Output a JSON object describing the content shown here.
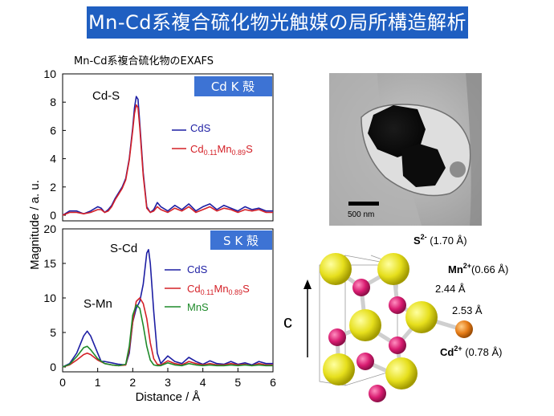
{
  "title": "Mn-Cd系複合硫化物光触媒の局所構造解析",
  "chart_caption": "Mn-Cd系複合硫化物のEXAFS",
  "chart_data": [
    {
      "type": "line",
      "badge": "Cd K 殻",
      "peak_annotations": [
        "Cd-S"
      ],
      "ylabel": "Magnitude / a. u.",
      "xlim": [
        0,
        6
      ],
      "ylim": [
        0,
        10
      ],
      "yticks": [
        "0",
        "2",
        "4",
        "6",
        "8",
        "10"
      ],
      "series": [
        {
          "name": "CdS",
          "color": "#1d1ea3",
          "x": [
            0.0,
            0.2,
            0.4,
            0.6,
            0.8,
            1.0,
            1.1,
            1.2,
            1.3,
            1.4,
            1.5,
            1.6,
            1.7,
            1.8,
            1.9,
            2.0,
            2.05,
            2.1,
            2.15,
            2.2,
            2.3,
            2.4,
            2.5,
            2.6,
            2.7,
            2.8,
            3.0,
            3.2,
            3.4,
            3.6,
            3.8,
            4.0,
            4.2,
            4.4,
            4.6,
            4.8,
            5.0,
            5.2,
            5.4,
            5.6,
            5.8,
            6.0
          ],
          "y": [
            0.0,
            0.3,
            0.3,
            0.1,
            0.3,
            0.6,
            0.5,
            0.2,
            0.4,
            0.7,
            1.2,
            1.6,
            2.0,
            2.6,
            4.0,
            6.2,
            7.6,
            8.4,
            8.2,
            6.5,
            3.0,
            0.6,
            0.2,
            0.4,
            0.9,
            0.6,
            0.3,
            0.7,
            0.4,
            0.8,
            0.3,
            0.6,
            0.8,
            0.4,
            0.7,
            0.5,
            0.3,
            0.6,
            0.4,
            0.5,
            0.3,
            0.3
          ]
        },
        {
          "name": "Cd",
          "sub1": "0.11",
          "mid": "Mn",
          "sub2": "0.89",
          "suffix": "S",
          "color": "#d42027",
          "x": [
            0.0,
            0.2,
            0.4,
            0.6,
            0.8,
            1.0,
            1.1,
            1.2,
            1.3,
            1.4,
            1.5,
            1.6,
            1.7,
            1.8,
            1.9,
            2.0,
            2.05,
            2.1,
            2.15,
            2.2,
            2.3,
            2.4,
            2.5,
            2.6,
            2.7,
            2.8,
            3.0,
            3.2,
            3.4,
            3.6,
            3.8,
            4.0,
            4.2,
            4.4,
            4.6,
            4.8,
            5.0,
            5.2,
            5.4,
            5.6,
            5.8,
            6.0
          ],
          "y": [
            0.0,
            0.2,
            0.2,
            0.1,
            0.2,
            0.4,
            0.4,
            0.2,
            0.3,
            0.6,
            1.1,
            1.5,
            1.9,
            2.5,
            3.9,
            6.0,
            7.2,
            7.8,
            7.6,
            6.2,
            2.8,
            0.5,
            0.2,
            0.3,
            0.6,
            0.4,
            0.2,
            0.5,
            0.3,
            0.6,
            0.2,
            0.4,
            0.6,
            0.3,
            0.5,
            0.4,
            0.2,
            0.4,
            0.3,
            0.4,
            0.2,
            0.2
          ]
        }
      ]
    },
    {
      "type": "line",
      "badge": "S K 殻",
      "peak_annotations": [
        "S-Cd",
        "S-Mn"
      ],
      "xlabel": "Distance / Å",
      "xlim": [
        0,
        6
      ],
      "ylim": [
        0,
        20
      ],
      "xticks": [
        "0",
        "1",
        "2",
        "3",
        "4",
        "5",
        "6"
      ],
      "yticks": [
        "0",
        "5",
        "10",
        "15",
        "20"
      ],
      "series": [
        {
          "name": "CdS",
          "color": "#1d1ea3",
          "x": [
            0.0,
            0.2,
            0.4,
            0.6,
            0.7,
            0.8,
            1.0,
            1.1,
            1.2,
            1.4,
            1.6,
            1.8,
            1.9,
            2.0,
            2.1,
            2.2,
            2.3,
            2.4,
            2.45,
            2.5,
            2.6,
            2.7,
            2.8,
            3.0,
            3.2,
            3.4,
            3.6,
            3.8,
            4.0,
            4.2,
            4.4,
            4.6,
            4.8,
            5.0,
            5.2,
            5.4,
            5.6,
            5.8,
            6.0
          ],
          "y": [
            0.0,
            0.5,
            2.0,
            4.5,
            5.2,
            4.5,
            2.0,
            0.8,
            0.8,
            0.6,
            0.4,
            0.3,
            2.0,
            6.5,
            8.5,
            9.5,
            12.0,
            16.5,
            17.0,
            15.0,
            8.0,
            2.0,
            0.5,
            1.6,
            0.8,
            0.5,
            1.4,
            0.8,
            0.4,
            0.9,
            0.5,
            0.4,
            0.8,
            0.4,
            0.6,
            0.3,
            0.8,
            0.5,
            0.5
          ]
        },
        {
          "name": "Cd",
          "sub1": "0.11",
          "mid": "Mn",
          "sub2": "0.89",
          "suffix": "S",
          "color": "#d42027",
          "x": [
            0.0,
            0.2,
            0.4,
            0.6,
            0.7,
            0.8,
            1.0,
            1.2,
            1.4,
            1.6,
            1.8,
            1.9,
            2.0,
            2.1,
            2.2,
            2.3,
            2.4,
            2.5,
            2.6,
            2.7,
            2.8,
            3.0,
            3.2,
            3.4,
            3.6,
            3.8,
            4.0,
            4.2,
            4.4,
            4.6,
            4.8,
            5.0,
            5.2,
            5.4,
            5.6,
            5.8,
            6.0
          ],
          "y": [
            0.0,
            0.3,
            1.0,
            1.8,
            2.0,
            1.8,
            1.0,
            0.5,
            0.3,
            0.2,
            0.3,
            2.5,
            6.5,
            9.5,
            10.0,
            9.2,
            7.0,
            3.5,
            1.2,
            0.4,
            0.3,
            0.9,
            0.5,
            0.3,
            0.8,
            0.5,
            0.3,
            0.5,
            0.3,
            0.3,
            0.5,
            0.3,
            0.4,
            0.2,
            0.5,
            0.3,
            0.3
          ]
        },
        {
          "name": "MnS",
          "color": "#1f8a2a",
          "x": [
            0.0,
            0.2,
            0.4,
            0.6,
            0.7,
            0.8,
            1.0,
            1.2,
            1.4,
            1.6,
            1.8,
            1.9,
            2.0,
            2.1,
            2.2,
            2.3,
            2.4,
            2.5,
            2.6,
            2.7,
            2.8,
            3.0,
            3.2,
            3.4,
            3.6,
            3.8,
            4.0,
            4.2,
            4.4,
            4.6,
            4.8,
            5.0,
            5.2,
            5.4,
            5.6,
            5.8,
            6.0
          ],
          "y": [
            0.0,
            0.4,
            1.5,
            2.8,
            3.0,
            2.5,
            1.2,
            0.5,
            0.3,
            0.2,
            0.4,
            3.0,
            7.5,
            9.0,
            8.5,
            6.0,
            3.0,
            1.0,
            0.3,
            0.2,
            0.2,
            0.6,
            0.3,
            0.2,
            0.5,
            0.3,
            0.2,
            0.3,
            0.2,
            0.2,
            0.3,
            0.2,
            0.3,
            0.2,
            0.3,
            0.2,
            0.2
          ]
        }
      ]
    }
  ],
  "tem_image": {
    "scale_bar_label": "500 nm"
  },
  "structure": {
    "axis_label": "c",
    "labels": {
      "s": {
        "ion": "S",
        "charge": "2-",
        "radius": " (1.70 Å)"
      },
      "mn": {
        "ion": "Mn",
        "charge": "2+",
        "radius": "(0.66 Å)"
      },
      "cd": {
        "ion": "Cd",
        "charge": "2+",
        "radius": " (0.78 Å)"
      },
      "bond1": "2.44 Å",
      "bond2": "2.53 Å"
    },
    "colors": {
      "sulfur": "#e6df1c",
      "manganese": "#d81b70",
      "cadmium": "#e67c17"
    }
  }
}
